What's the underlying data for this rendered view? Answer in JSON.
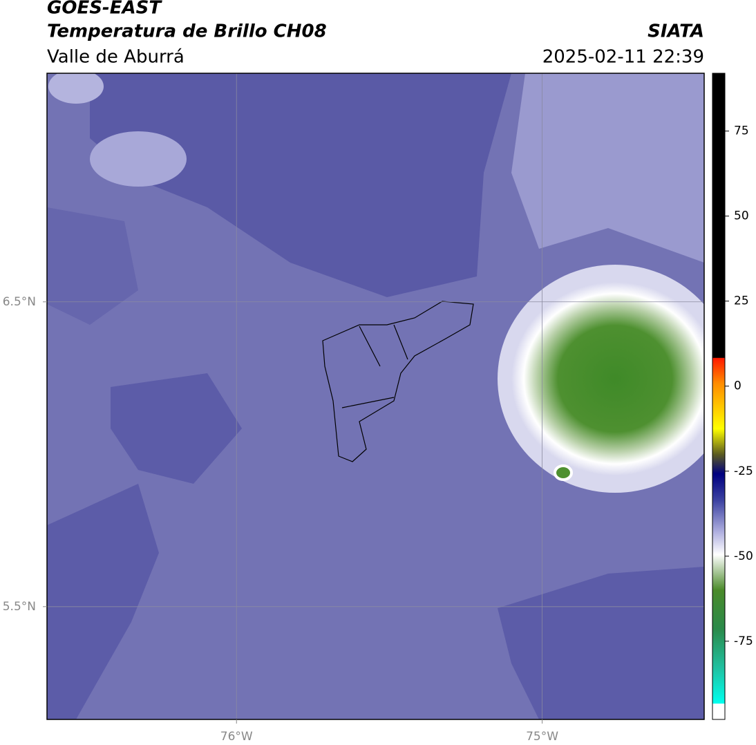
{
  "header": {
    "title": "GOES-EAST",
    "subtitle": "Temperatura de Brillo CH08",
    "source": "SIATA",
    "region": "Valle de Aburrá",
    "timestamp": "2025-02-11 22:39"
  },
  "map": {
    "xlim": [
      -76.62,
      -74.47
    ],
    "ylim": [
      5.13,
      7.25
    ],
    "xticks": [
      {
        "value": -76,
        "label": "76°W"
      },
      {
        "value": -75,
        "label": "75°W"
      }
    ],
    "yticks": [
      {
        "value": 6.5,
        "label": "6.5°N"
      },
      {
        "value": 5.5,
        "label": "5.5°N"
      }
    ],
    "grid": true
  },
  "colorbar": {
    "lim": [
      -98,
      92
    ],
    "ticks": [
      75,
      50,
      25,
      0,
      -25,
      -50,
      -75
    ]
  }
}
